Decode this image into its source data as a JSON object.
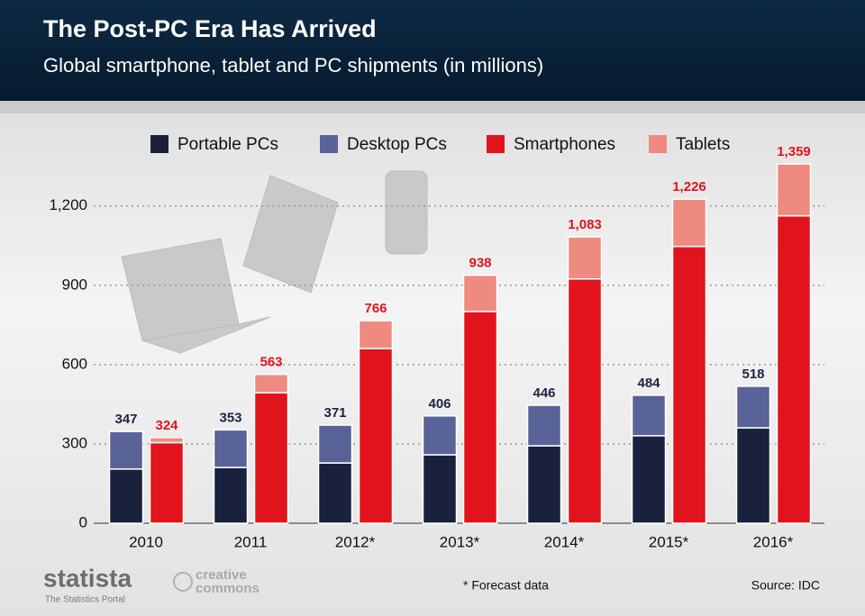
{
  "chart_data": {
    "type": "grouped_stacked_bar",
    "title": "The Post-PC Era Has Arrived",
    "subtitle": "Global smartphone, tablet and PC shipments (in millions)",
    "categories": [
      "2010",
      "2011",
      "2012*",
      "2013*",
      "2014*",
      "2015*",
      "2016*"
    ],
    "series": [
      {
        "name": "Portable PCs",
        "color": "#19213d",
        "stack": "pc",
        "values": [
          205,
          211,
          228,
          259,
          293,
          331,
          361
        ]
      },
      {
        "name": "Desktop PCs",
        "color": "#5a6398",
        "stack": "pc",
        "values": [
          142,
          142,
          143,
          147,
          153,
          153,
          157
        ]
      },
      {
        "name": "Smartphones",
        "color": "#e1141d",
        "stack": "mobile",
        "values": [
          305,
          494,
          661,
          801,
          924,
          1047,
          1163
        ]
      },
      {
        "name": "Tablets",
        "color": "#ef8a80",
        "stack": "mobile",
        "values": [
          19,
          69,
          105,
          137,
          159,
          179,
          196
        ]
      }
    ],
    "pc_totals": [
      347,
      353,
      371,
      406,
      446,
      484,
      518
    ],
    "mobile_totals": [
      324,
      563,
      766,
      938,
      1083,
      1226,
      1359
    ],
    "mobile_total_labels": [
      "324",
      "563",
      "766",
      "938",
      "1,083",
      "1,226",
      "1,359"
    ],
    "ylim": [
      0,
      1400
    ],
    "yticks": [
      0,
      300,
      600,
      900,
      {
        "value": 1200,
        "label": "1,200"
      }
    ],
    "grid": true,
    "legend": "top",
    "footnote": "* Forecast data",
    "source": "Source: IDC",
    "brand": "statista",
    "brand_tagline": "The Statistics Portal",
    "license_top": "creative",
    "license_bottom": "commons"
  }
}
